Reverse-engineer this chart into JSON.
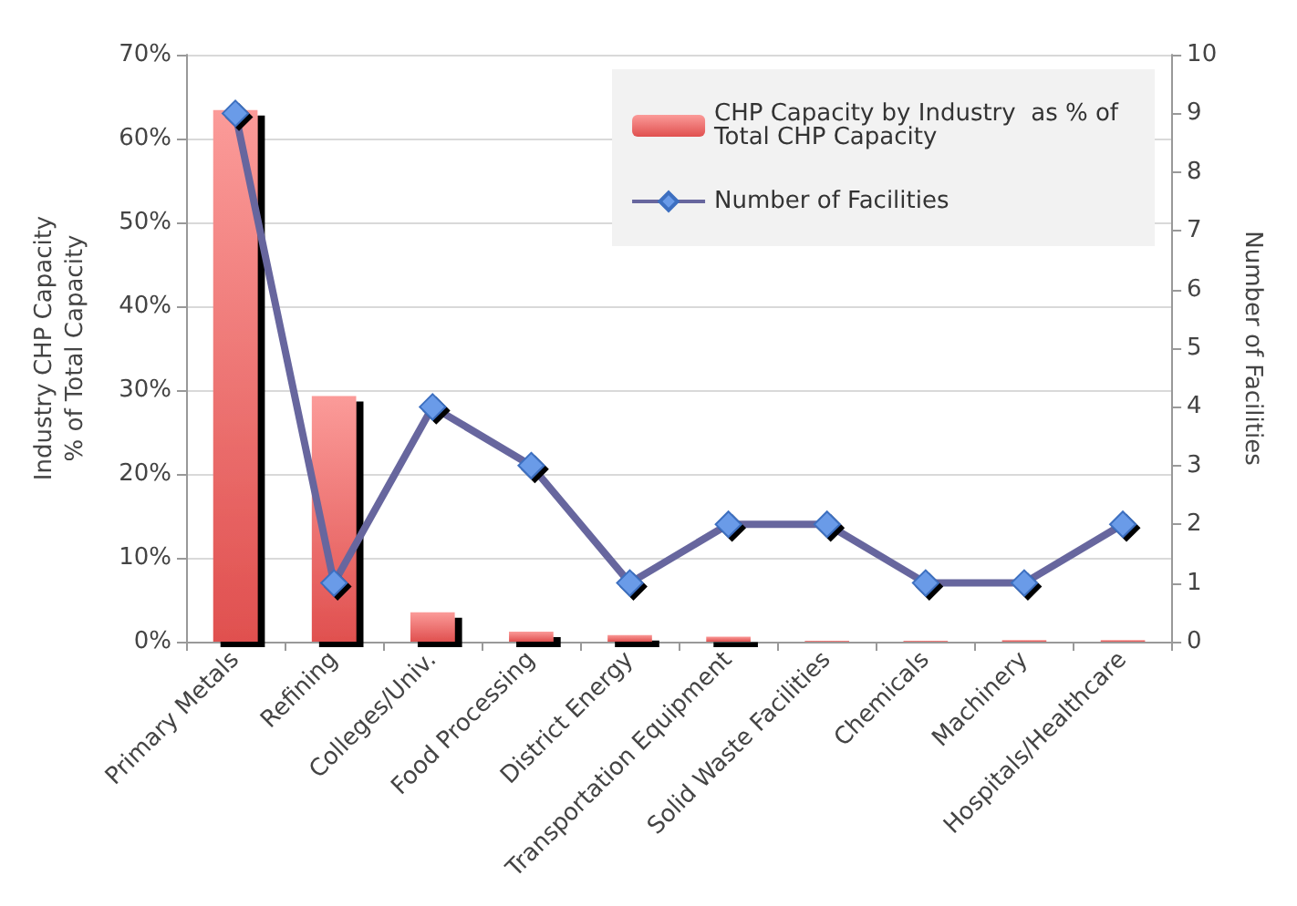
{
  "chart_data": {
    "type": "bar",
    "categories": [
      "Primary Metals",
      "Refining",
      "Colleges/Univ.",
      "Food Processing",
      "District Energy",
      "Transportation Equipment",
      "Solid Waste Facilities",
      "Chemicals",
      "Machinery",
      "Hospitals/Healthcare"
    ],
    "ylabel": "Industry CHP Capacity\n% of Total Capacity",
    "y2label": "Number of Facilities",
    "series": [
      {
        "name": "CHP Capacity by Industry  as % of\nTotal CHP Capacity",
        "color": "#e0504f",
        "values": [
          63.4,
          29.3,
          3.5,
          1.2,
          0.8,
          0.6,
          0.1,
          0.1,
          0.2,
          0.2
        ]
      },
      {
        "name": "Number of Facilities",
        "type": "line",
        "axis": "y2",
        "color": "#67669e",
        "values": [
          9,
          1,
          4,
          3,
          1,
          2,
          2,
          1,
          1,
          2
        ]
      }
    ],
    "ylim": [
      0,
      70
    ],
    "yticks": [
      {
        "value": 0,
        "label": "0%"
      },
      {
        "value": 10,
        "label": "10%"
      },
      {
        "value": 20,
        "label": "20%"
      },
      {
        "value": 30,
        "label": "30%"
      },
      {
        "value": 40,
        "label": "40%"
      },
      {
        "value": 50,
        "label": "50%"
      },
      {
        "value": 60,
        "label": "60%"
      },
      {
        "value": 70,
        "label": "70%"
      }
    ],
    "y2lim": [
      0,
      10
    ],
    "y2ticks": [
      0,
      1,
      2,
      3,
      4,
      5,
      6,
      7,
      8,
      9,
      10
    ],
    "grid": "y",
    "legend": "top right",
    "marker": "diamond"
  }
}
